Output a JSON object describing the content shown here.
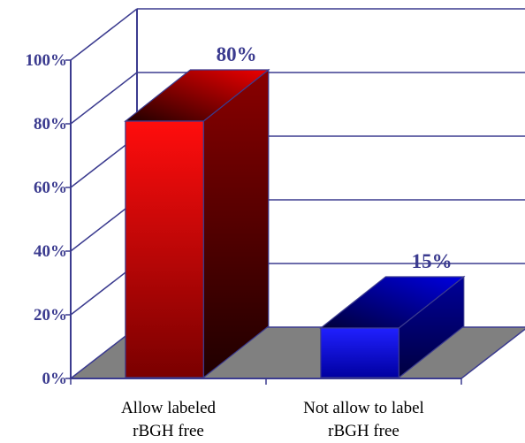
{
  "chart_data": {
    "type": "bar",
    "categories": [
      [
        "Allow labeled",
        "rBGH free"
      ],
      [
        "Not allow to label",
        "rBGH free"
      ]
    ],
    "values": [
      80,
      15
    ],
    "data_labels": [
      "80%",
      "15%"
    ],
    "yticks": [
      "0%",
      "20%",
      "40%",
      "60%",
      "80%",
      "100%"
    ],
    "ylim": [
      0,
      100
    ],
    "grid": true,
    "style": "3d",
    "colors": {
      "axis": "#3b3b8f",
      "floor": "#808080",
      "bar_series": [
        "#ff0000",
        "#0000ff"
      ]
    }
  }
}
